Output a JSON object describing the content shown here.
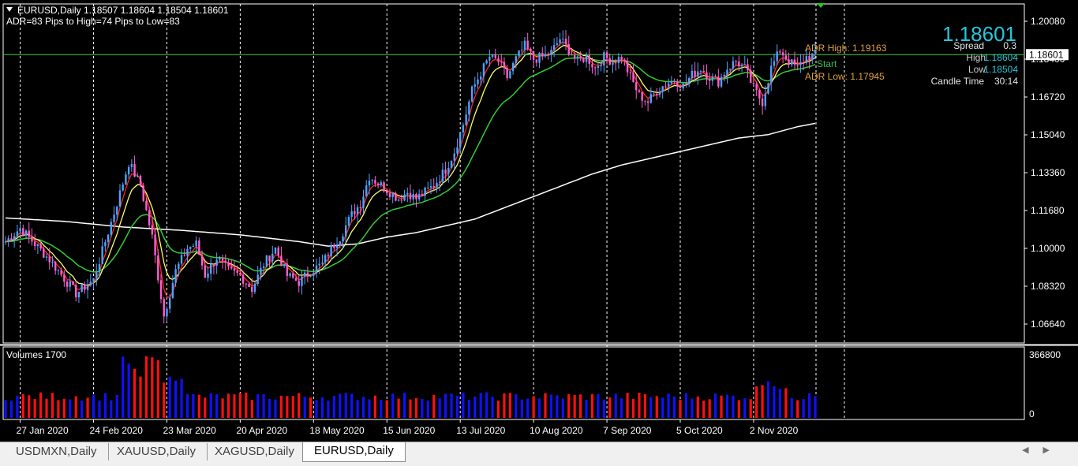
{
  "header": {
    "symbol_line": "EURUSD,Daily  1.18507 1.18604 1.18504 1.18601",
    "adr_line": "ADR=83 Pips to High=74 Pips to Low=83"
  },
  "info_panel": {
    "big_price": "1.18601",
    "spread_label": "Spread",
    "spread_value": "0.3",
    "high_label": "High",
    "high_value": "1.18604",
    "low_label": "Low",
    "low_value": "1.18504",
    "candle_time_label": "Candle Time",
    "candle_time_value": "30:14",
    "adr_high": "ADR High: 1.19163",
    "adr_low": "ADR Low: 1.17945",
    "start_label": "Start"
  },
  "chart_data": [
    {
      "type": "candlestick",
      "title": "EURUSD,Daily",
      "current_price": 1.18601,
      "current_price_label": "1.18601",
      "ylim": [
        1.058,
        1.2085
      ],
      "y_ticks": [
        1.2008,
        1.184,
        1.1672,
        1.1504,
        1.1336,
        1.1168,
        1.1,
        1.0832,
        1.0664
      ],
      "y_tick_labels": [
        "1.20080",
        "1.18400",
        "1.16720",
        "1.15040",
        "1.13360",
        "1.11680",
        "1.10000",
        "1.08320",
        "1.06640"
      ],
      "x_labels": [
        "27 Jan 2020",
        "24 Feb 2020",
        "23 Mar 2020",
        "20 Apr 2020",
        "18 May 2020",
        "15 Jun 2020",
        "13 Jul 2020",
        "10 Aug 2020",
        "7 Sep 2020",
        "5 Oct 2020",
        "2 Nov 2020"
      ],
      "close_path": [
        [
          0,
          1.103
        ],
        [
          5,
          1.109
        ],
        [
          15,
          1.095
        ],
        [
          24,
          1.08
        ],
        [
          30,
          1.086
        ],
        [
          38,
          1.12
        ],
        [
          42,
          1.138
        ],
        [
          46,
          1.128
        ],
        [
          50,
          1.105
        ],
        [
          54,
          1.07
        ],
        [
          58,
          1.09
        ],
        [
          62,
          1.1
        ],
        [
          65,
          1.102
        ],
        [
          68,
          1.088
        ],
        [
          72,
          1.096
        ],
        [
          76,
          1.09
        ],
        [
          80,
          1.088
        ],
        [
          84,
          1.082
        ],
        [
          88,
          1.093
        ],
        [
          92,
          1.1
        ],
        [
          96,
          1.088
        ],
        [
          100,
          1.085
        ],
        [
          104,
          1.09
        ],
        [
          108,
          1.093
        ],
        [
          111,
          1.1
        ],
        [
          114,
          1.105
        ],
        [
          118,
          1.115
        ],
        [
          121,
          1.12
        ],
        [
          124,
          1.132
        ],
        [
          128,
          1.128
        ],
        [
          131,
          1.125
        ],
        [
          134,
          1.122
        ],
        [
          137,
          1.125
        ],
        [
          140,
          1.122
        ],
        [
          143,
          1.125
        ],
        [
          146,
          1.128
        ],
        [
          150,
          1.135
        ],
        [
          153,
          1.143
        ],
        [
          156,
          1.155
        ],
        [
          159,
          1.17
        ],
        [
          162,
          1.178
        ],
        [
          165,
          1.185
        ],
        [
          168,
          1.183
        ],
        [
          171,
          1.176
        ],
        [
          174,
          1.184
        ],
        [
          177,
          1.19
        ],
        [
          180,
          1.184
        ],
        [
          183,
          1.185
        ],
        [
          186,
          1.187
        ],
        [
          189,
          1.193
        ],
        [
          192,
          1.188
        ],
        [
          195,
          1.183
        ],
        [
          198,
          1.185
        ],
        [
          201,
          1.18
        ],
        [
          204,
          1.185
        ],
        [
          207,
          1.183
        ],
        [
          210,
          1.185
        ],
        [
          213,
          1.176
        ],
        [
          216,
          1.168
        ],
        [
          219,
          1.165
        ],
        [
          222,
          1.17
        ],
        [
          225,
          1.173
        ],
        [
          228,
          1.175
        ],
        [
          231,
          1.172
        ],
        [
          234,
          1.177
        ],
        [
          237,
          1.18
        ],
        [
          240,
          1.176
        ],
        [
          243,
          1.174
        ],
        [
          246,
          1.18
        ],
        [
          249,
          1.183
        ],
        [
          252,
          1.18
        ],
        [
          255,
          1.171
        ],
        [
          258,
          1.165
        ],
        [
          261,
          1.18
        ],
        [
          264,
          1.188
        ],
        [
          267,
          1.183
        ],
        [
          270,
          1.18
        ],
        [
          273,
          1.185
        ],
        [
          276,
          1.186
        ]
      ],
      "ma200_path": [
        [
          0,
          1.1135
        ],
        [
          20,
          1.112
        ],
        [
          40,
          1.1095
        ],
        [
          60,
          1.108
        ],
        [
          80,
          1.106
        ],
        [
          100,
          1.103
        ],
        [
          110,
          1.101
        ],
        [
          120,
          1.102
        ],
        [
          130,
          1.105
        ],
        [
          140,
          1.107
        ],
        [
          150,
          1.11
        ],
        [
          160,
          1.113
        ],
        [
          170,
          1.118
        ],
        [
          180,
          1.123
        ],
        [
          190,
          1.128
        ],
        [
          200,
          1.133
        ],
        [
          210,
          1.137
        ],
        [
          220,
          1.14
        ],
        [
          230,
          1.143
        ],
        [
          240,
          1.146
        ],
        [
          250,
          1.149
        ],
        [
          260,
          1.1505
        ],
        [
          270,
          1.154
        ],
        [
          276,
          1.1555
        ]
      ]
    },
    {
      "type": "bar",
      "title": "Volumes 1700",
      "ylim": [
        0,
        366800
      ],
      "y_tick_labels": [
        "366800",
        "0"
      ],
      "values_note_colors": [
        "#0000ff",
        "#ff0000"
      ]
    }
  ],
  "tabs": [
    {
      "label": "USDMXN,Daily"
    },
    {
      "label": "XAUUSD,Daily"
    },
    {
      "label": "XAGUSD,Daily"
    },
    {
      "label": "EURUSD,Daily"
    }
  ],
  "colors": {
    "background": "#000000",
    "grid": "#ffffff",
    "bull": "#4fa3ff",
    "bear": "#ff5fd0",
    "ma_fast": "#ff2020",
    "ma_mid": "#ffff66",
    "ma_slow": "#33cc33",
    "ma_long": "#ffffff",
    "price_line": "#33cc33",
    "big_price": "#26c6da",
    "adr": "#e0a040",
    "vol_up": "#1010ff",
    "vol_down": "#ff1010"
  }
}
